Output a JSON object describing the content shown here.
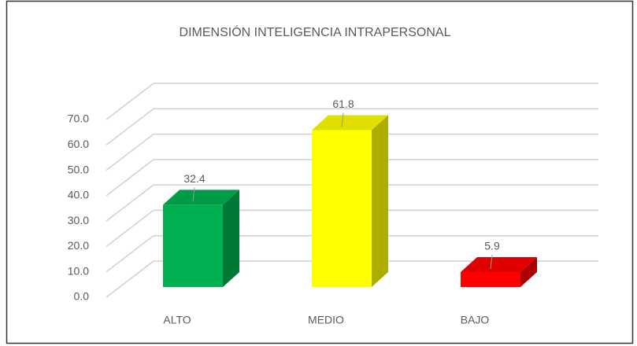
{
  "chart_data": {
    "type": "bar",
    "title": "DIMENSIÓN INTELIGENCIA INTRAPERSONAL",
    "categories": [
      "ALTO",
      "MEDIO",
      "BAJO"
    ],
    "values": [
      32.4,
      61.8,
      5.9
    ],
    "colors": [
      "#00b050",
      "#ffff00",
      "#ff0000"
    ],
    "ylim": [
      0,
      70
    ],
    "yticks": [
      {
        "value": 0,
        "label": "0.0"
      },
      {
        "value": 10,
        "label": "10.0"
      },
      {
        "value": 20,
        "label": "20.0"
      },
      {
        "value": 30,
        "label": "30.0"
      },
      {
        "value": 40,
        "label": "40.0"
      },
      {
        "value": 50,
        "label": "50.0"
      },
      {
        "value": 60,
        "label": "60.0"
      },
      {
        "value": 70,
        "label": "70.0"
      }
    ],
    "grid": true
  }
}
